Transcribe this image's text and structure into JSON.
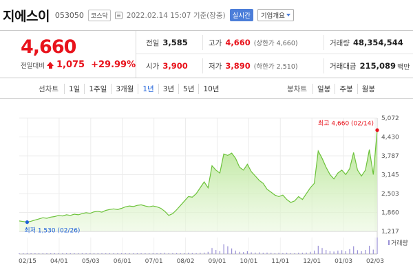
{
  "header": {
    "stock_name": "지에스이",
    "stock_code": "053050",
    "market": "코스닥",
    "datetime": "2022.02.14 15:07 기준(장중)",
    "realtime_label": "실시간",
    "company_info_label": "기업개요"
  },
  "quote": {
    "price": "4,660",
    "change_label": "전일대비",
    "change": "1,075",
    "change_rate": "+29.99%",
    "prev_close_label": "전일",
    "prev_close": "3,585",
    "open_label": "시가",
    "open": "3,900",
    "high_label": "고가",
    "high": "4,660",
    "upper_limit": "(상한가 4,660)",
    "low_label": "저가",
    "low": "3,890",
    "lower_limit": "(하한가 2,510)",
    "volume_label": "거래량",
    "volume": "48,354,544",
    "amount_label": "거래대금",
    "amount": "215,089",
    "amount_unit": "백만"
  },
  "period_bar": {
    "line_title": "선차트",
    "line_tabs": [
      "1일",
      "1주일",
      "3개월",
      "1년",
      "3년",
      "5년",
      "10년"
    ],
    "active_tab": "1년",
    "candle_title": "봉차트",
    "candle_tabs": [
      "일봉",
      "주봉",
      "월봉"
    ]
  },
  "colors": {
    "up": "#e8131c",
    "down": "#1b5fd9",
    "line": "#6cc23a",
    "volume": "#9990d6"
  },
  "chart_data": {
    "type": "area",
    "y_ticks": [
      "5,072",
      "4,430",
      "3,787",
      "3,145",
      "2,503",
      "1,860",
      "1,217"
    ],
    "ylim": [
      1217,
      5072
    ],
    "x_ticks": [
      "02/15",
      "04/01",
      "05/03",
      "06/01",
      "07/01",
      "08/02",
      "09/01",
      "10/01",
      "11/01",
      "12/01",
      "01/03",
      "02/03"
    ],
    "high_annotation": "최고 4,660 (02/14)",
    "low_annotation": "최저 1,530 (02/26)",
    "volume_legend": "거래량",
    "price": [
      1570,
      1550,
      1530,
      1560,
      1600,
      1640,
      1680,
      1660,
      1700,
      1720,
      1760,
      1740,
      1780,
      1760,
      1800,
      1780,
      1820,
      1850,
      1830,
      1880,
      1900,
      1870,
      1930,
      1960,
      1980,
      1960,
      2000,
      2050,
      2080,
      2060,
      2100,
      2120,
      2080,
      2050,
      2080,
      2050,
      2000,
      1900,
      1760,
      1820,
      1950,
      2100,
      2250,
      2400,
      2380,
      2500,
      2700,
      2900,
      2700,
      3450,
      3300,
      3200,
      3850,
      3800,
      3880,
      3700,
      3400,
      3300,
      3500,
      3250,
      3100,
      2950,
      2850,
      2650,
      2550,
      2450,
      2400,
      2450,
      2300,
      2200,
      2250,
      2400,
      2300,
      2500,
      2700,
      2850,
      3950,
      3700,
      3400,
      3150,
      3000,
      3200,
      3300,
      3150,
      3350,
      3900,
      3300,
      3100,
      3300,
      4000,
      3150,
      4660
    ],
    "volume": [
      2,
      1,
      3,
      1,
      1,
      2,
      1,
      1,
      2,
      1,
      1,
      2,
      1,
      1,
      1,
      2,
      1,
      1,
      2,
      1,
      1,
      1,
      2,
      1,
      1,
      1,
      2,
      1,
      1,
      1,
      2,
      1,
      1,
      2,
      1,
      2,
      3,
      4,
      2,
      3,
      3,
      2,
      3,
      4,
      3,
      3,
      4,
      5,
      8,
      22,
      15,
      10,
      35,
      28,
      20,
      12,
      8,
      7,
      10,
      6,
      5,
      6,
      4,
      5,
      4,
      3,
      4,
      3,
      4,
      3,
      3,
      4,
      4,
      5,
      8,
      12,
      30,
      22,
      15,
      10,
      9,
      12,
      14,
      10,
      18,
      28,
      14,
      10,
      15,
      30,
      16,
      60
    ]
  }
}
